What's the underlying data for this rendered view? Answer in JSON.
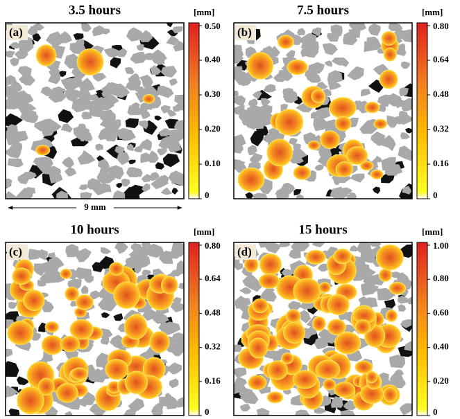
{
  "panels": [
    {
      "title": "3.5 hours",
      "label": "(a)",
      "unit": "[mm]",
      "ticks": [
        "0",
        "0.10",
        "0.20",
        "0.30",
        "0.40",
        "0.50"
      ]
    },
    {
      "title": "7.5 hours",
      "label": "(b)",
      "unit": "[mm]",
      "ticks": [
        "0",
        "0.16",
        "0.32",
        "0.48",
        "0.64",
        "0.80"
      ]
    },
    {
      "title": "10 hours",
      "label": "(c)",
      "unit": "[mm]",
      "ticks": [
        "0",
        "0.16",
        "0.32",
        "0.48",
        "0.64",
        "0.80"
      ]
    },
    {
      "title": "15 hours",
      "label": "(d)",
      "unit": "[mm]",
      "ticks": [
        "0",
        "0.20",
        "0.40",
        "0.60",
        "0.80",
        "1.00"
      ]
    }
  ],
  "scale_bar": "9 mm"
}
